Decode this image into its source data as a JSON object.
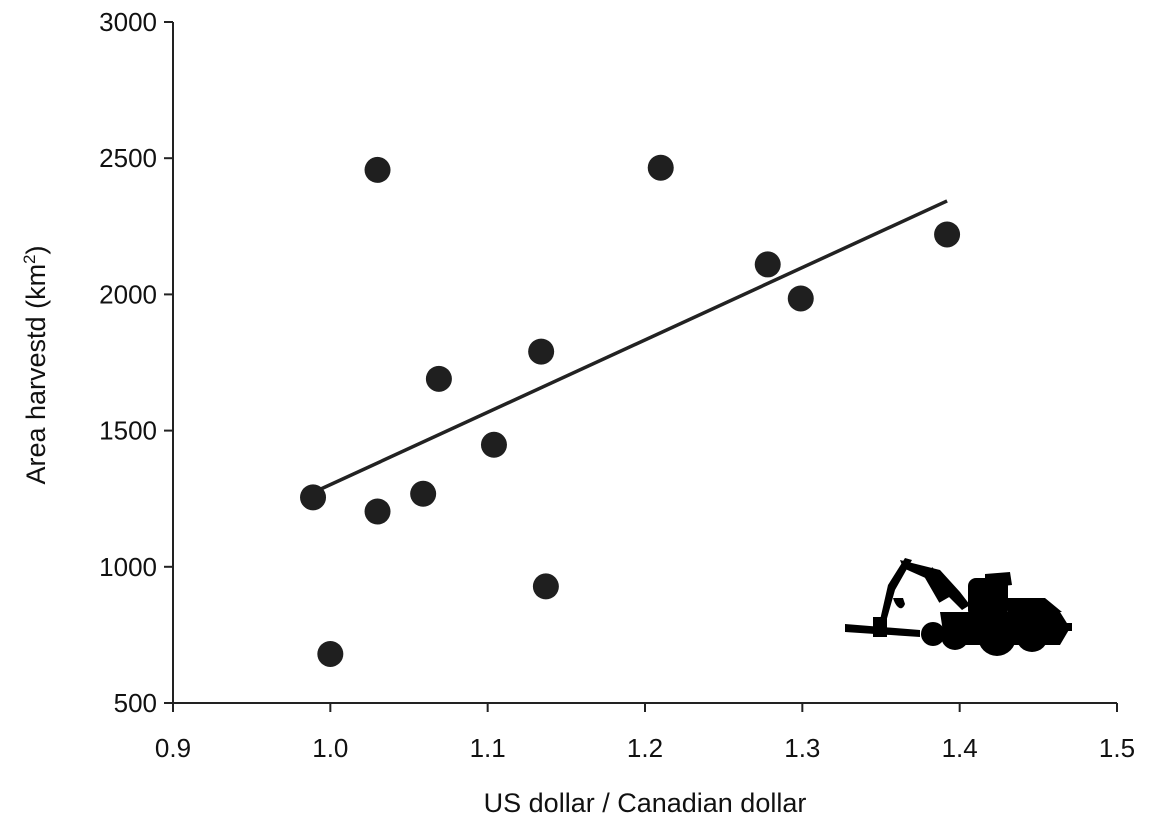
{
  "chart_data": {
    "type": "scatter",
    "xlabel": "US dollar / Canadian dollar",
    "ylabel_main": "Area harvestd (km",
    "ylabel_sup": "2",
    "ylabel_close": ")",
    "xlim": [
      0.9,
      1.5
    ],
    "ylim": [
      500,
      3000
    ],
    "xticks": [
      0.9,
      1.0,
      1.1,
      1.2,
      1.3,
      1.4,
      1.5
    ],
    "xtick_labels": [
      "0.9",
      "1.0",
      "1.1",
      "1.2",
      "1.3",
      "1.4",
      "1.5"
    ],
    "yticks": [
      500,
      1000,
      1500,
      2000,
      2500,
      3000
    ],
    "ytick_labels": [
      "500",
      "1000",
      "1500",
      "2000",
      "2500",
      "3000"
    ],
    "grid": false,
    "points": [
      {
        "x": 0.989,
        "y": 1255
      },
      {
        "x": 1.0,
        "y": 680
      },
      {
        "x": 1.03,
        "y": 2457
      },
      {
        "x": 1.03,
        "y": 1203
      },
      {
        "x": 1.059,
        "y": 1268
      },
      {
        "x": 1.069,
        "y": 1690
      },
      {
        "x": 1.104,
        "y": 1448
      },
      {
        "x": 1.134,
        "y": 1790
      },
      {
        "x": 1.137,
        "y": 928
      },
      {
        "x": 1.21,
        "y": 2465
      },
      {
        "x": 1.278,
        "y": 2110
      },
      {
        "x": 1.299,
        "y": 1985
      },
      {
        "x": 1.392,
        "y": 2220
      }
    ],
    "trendline": {
      "x": [
        0.99,
        1.392
      ],
      "y": [
        1275,
        2343
      ]
    },
    "colors": {
      "points": "#1f1f1f",
      "line": "#222222",
      "text": "#111111"
    },
    "annotation_icon": "forest-harvester-silhouette-icon"
  }
}
